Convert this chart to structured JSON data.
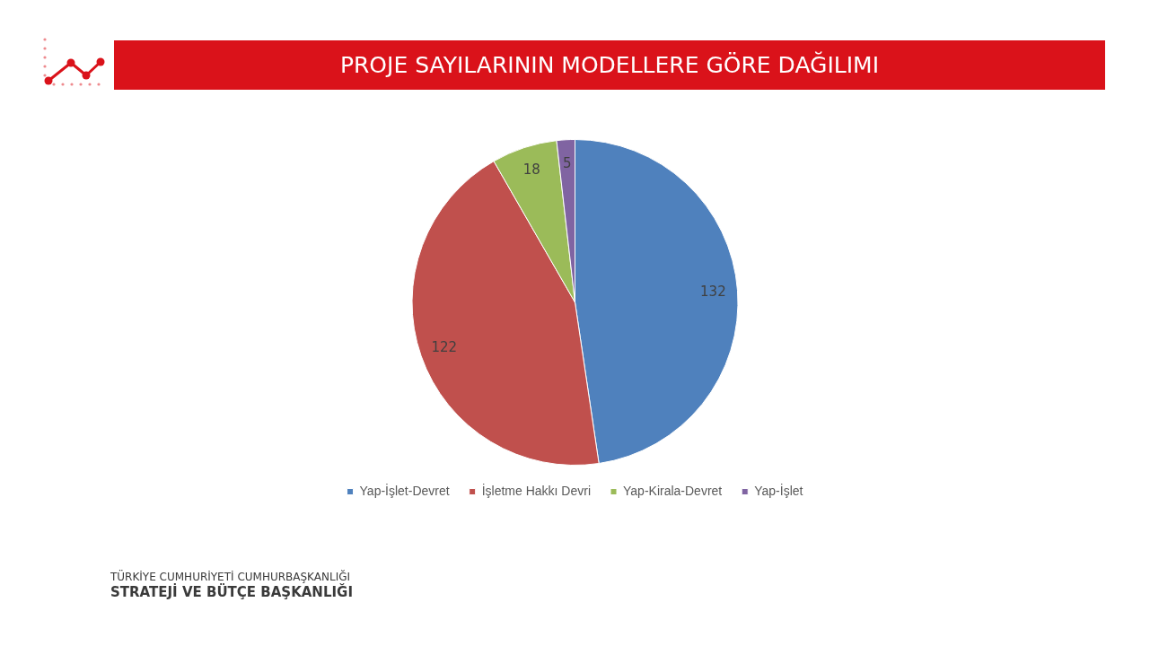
{
  "chart_data": {
    "type": "pie",
    "title": "PROJE SAYILARININ MODELLERE GÖRE DAĞILIMI",
    "categories": [
      "Yap-İşlet-Devret",
      "İşletme Hakkı Devri",
      "Yap-Kirala-Devret",
      "Yap-İşlet"
    ],
    "values": [
      132,
      122,
      18,
      5
    ],
    "colors": [
      "#4f81bd",
      "#c0504d",
      "#9bbb59",
      "#8064a2"
    ],
    "data_labels": true,
    "legend": "bottom",
    "annotations": [
      "TÜRKİYE CUMHURİYETİ CUMHURBAŞKANLIĞI",
      "STRATEJİ VE BÜTÇE BAŞKANLIĞI"
    ]
  }
}
